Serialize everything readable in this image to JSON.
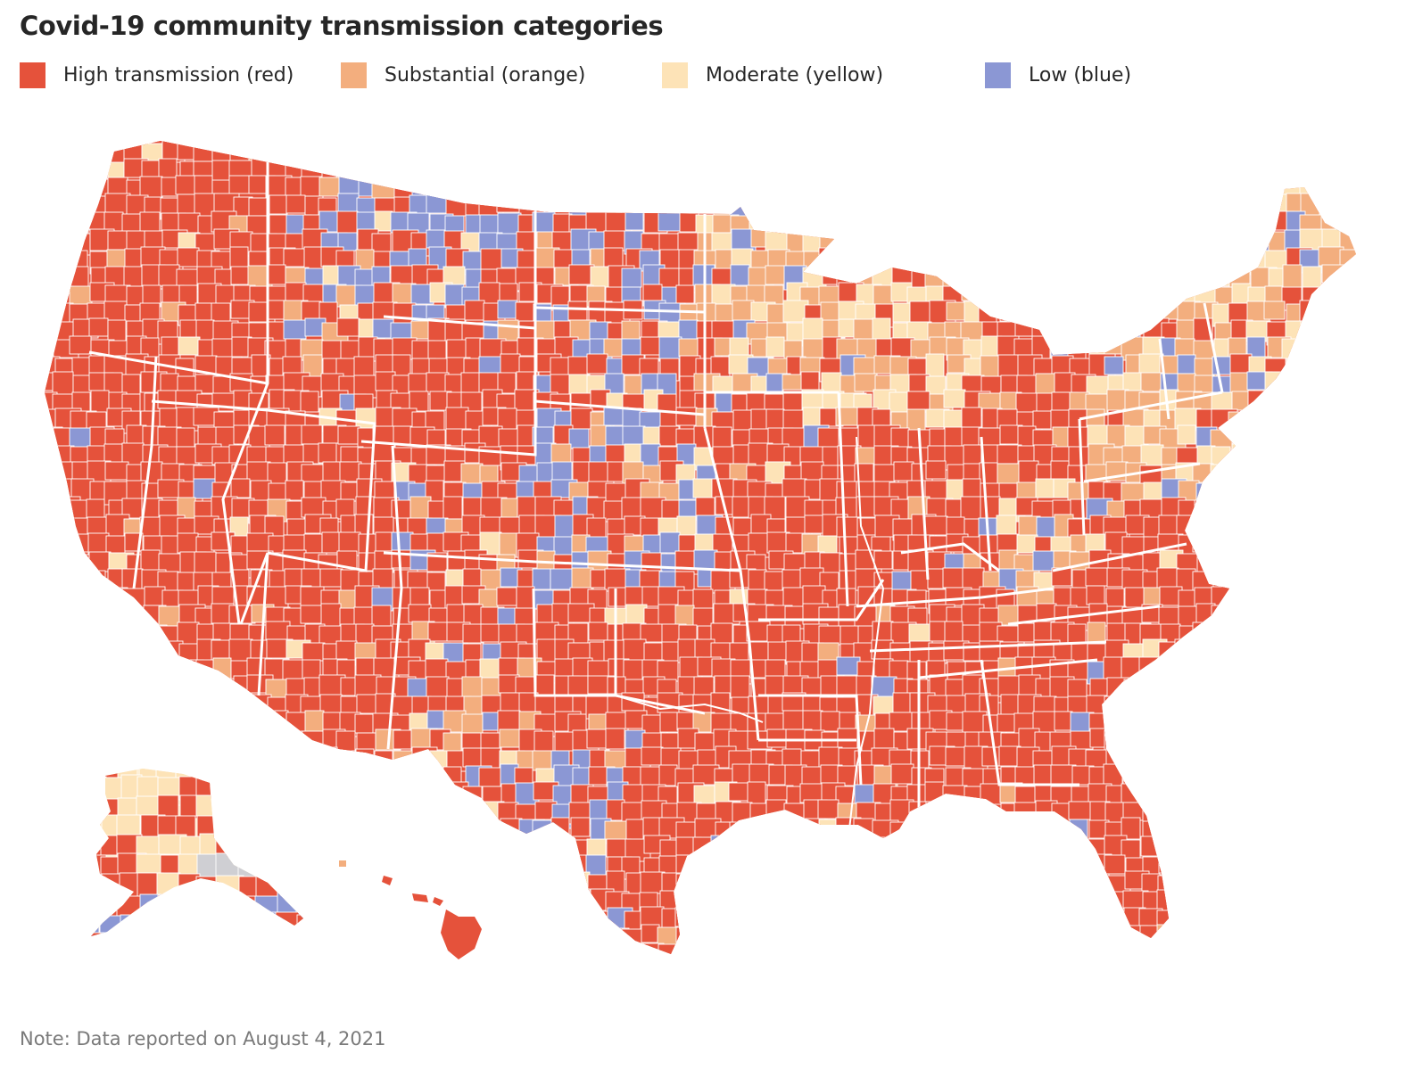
{
  "title": "Covid-19 community transmission categories",
  "legend": [
    {
      "label": "High transmission (red)",
      "color": "#e5523b",
      "icon": "square-swatch"
    },
    {
      "label": "Substantial (orange)",
      "color": "#f3ae7e",
      "icon": "square-swatch"
    },
    {
      "label": "Moderate (yellow)",
      "color": "#fde3b7",
      "icon": "square-swatch"
    },
    {
      "label": "Low (blue)",
      "color": "#8b97d4",
      "icon": "square-swatch"
    }
  ],
  "colors": {
    "high": "#e5523b",
    "substantial": "#f3ae7e",
    "moderate": "#fde3b7",
    "low": "#8b97d4",
    "no_data": "#cfcfd3",
    "border": "#ffffff"
  },
  "map": {
    "regions": [
      "Contiguous United States",
      "Alaska",
      "Hawaii"
    ]
  },
  "note": "Note: Data reported on August 4, 2021"
}
